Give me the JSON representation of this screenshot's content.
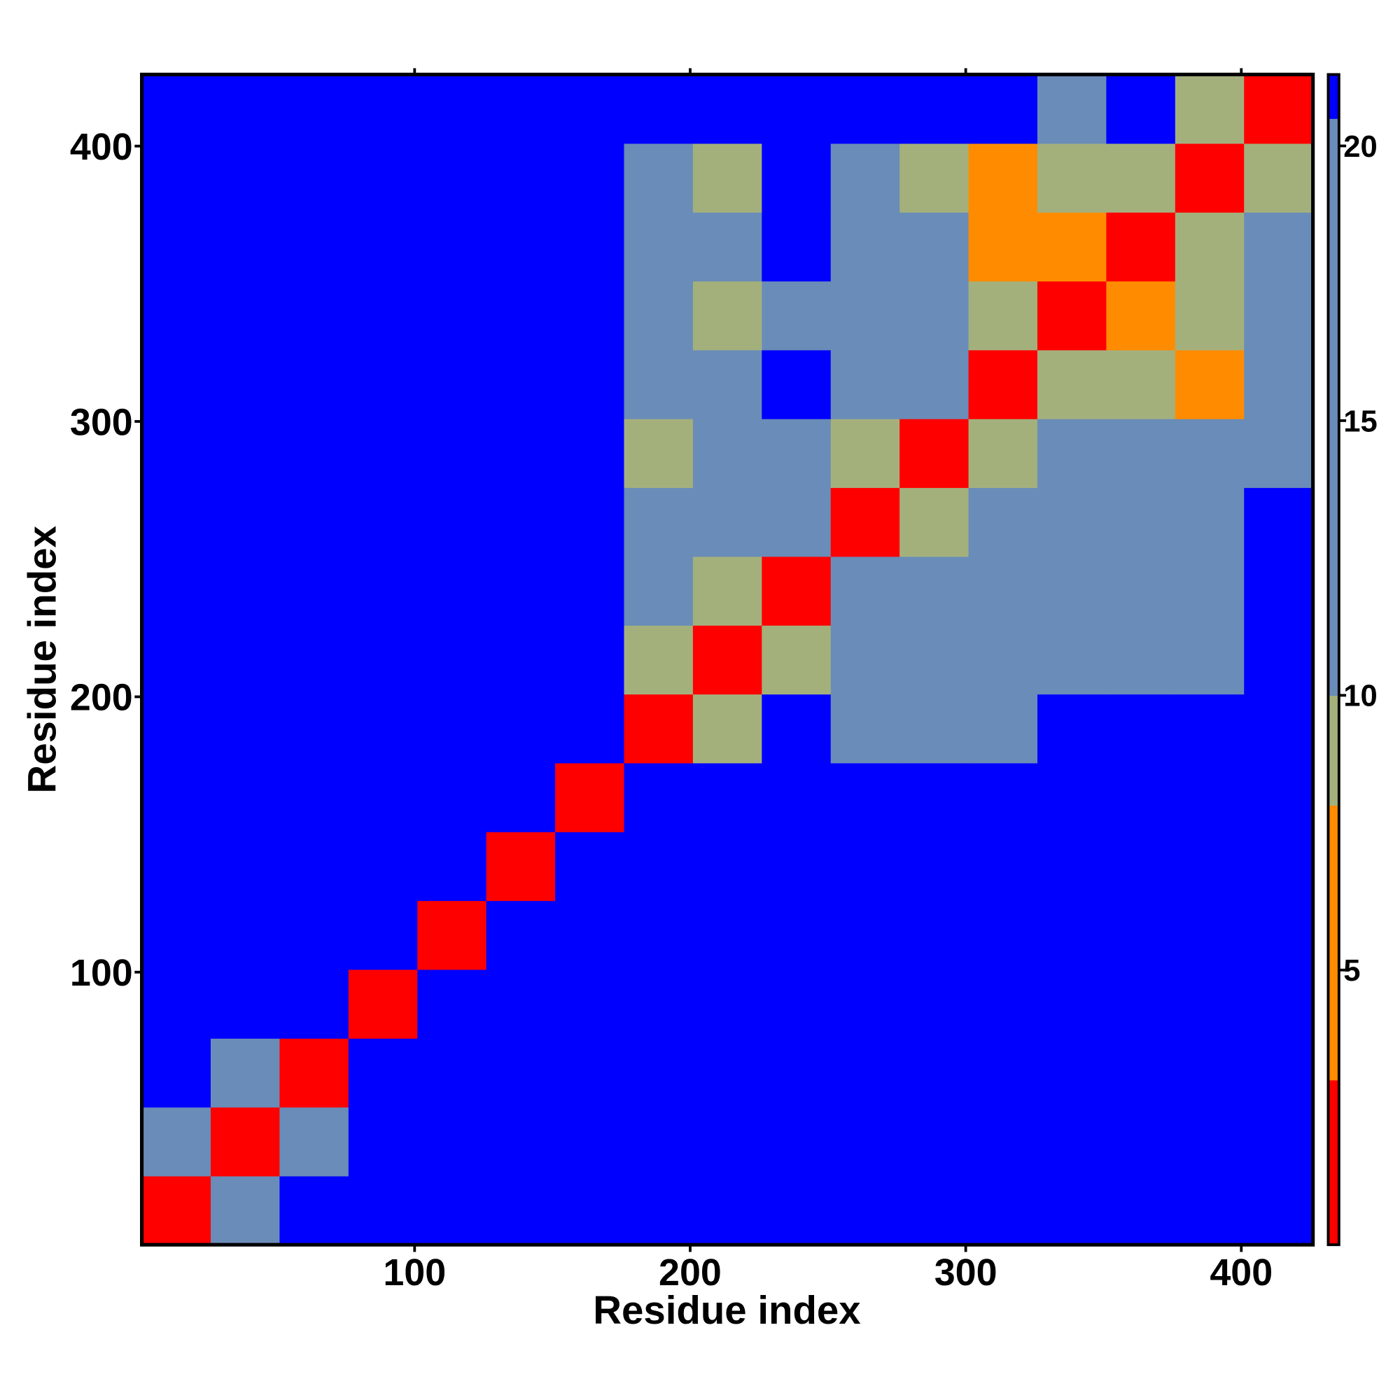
{
  "chart_data": {
    "type": "heatmap",
    "x_label": "Residue index",
    "y_label": "Residue index",
    "x_edges": [
      1,
      26,
      51,
      76,
      101,
      126,
      151,
      176,
      201,
      226,
      251,
      276,
      301,
      326,
      351,
      376,
      401,
      426
    ],
    "y_edges": [
      1,
      26,
      51,
      76,
      101,
      126,
      151,
      176,
      201,
      226,
      251,
      276,
      301,
      326,
      351,
      376,
      401,
      426
    ],
    "z": [
      [
        3,
        12,
        21,
        21,
        21,
        21,
        21,
        21,
        21,
        21,
        21,
        21,
        21,
        21,
        21,
        21,
        21
      ],
      [
        12,
        3,
        12,
        21,
        21,
        21,
        21,
        21,
        21,
        21,
        21,
        21,
        21,
        21,
        21,
        21,
        21
      ],
      [
        21,
        12,
        3,
        21,
        21,
        21,
        21,
        21,
        21,
        21,
        21,
        21,
        21,
        21,
        21,
        21,
        21
      ],
      [
        21,
        21,
        21,
        3,
        21,
        21,
        21,
        21,
        21,
        21,
        21,
        21,
        21,
        21,
        21,
        21,
        21
      ],
      [
        21,
        21,
        21,
        21,
        3,
        21,
        21,
        21,
        21,
        21,
        21,
        21,
        21,
        21,
        21,
        21,
        21
      ],
      [
        21,
        21,
        21,
        21,
        21,
        3,
        21,
        21,
        21,
        21,
        21,
        21,
        21,
        21,
        21,
        21,
        21
      ],
      [
        21,
        21,
        21,
        21,
        21,
        21,
        3,
        21,
        21,
        21,
        21,
        21,
        21,
        21,
        21,
        21,
        21
      ],
      [
        21,
        21,
        21,
        21,
        21,
        21,
        21,
        3,
        10,
        21,
        16,
        14,
        16,
        21,
        21,
        21,
        21
      ],
      [
        21,
        21,
        21,
        21,
        21,
        21,
        21,
        10,
        3,
        9,
        14,
        14,
        16,
        14,
        14,
        14,
        21
      ],
      [
        21,
        21,
        21,
        21,
        21,
        21,
        21,
        16,
        9,
        3,
        16,
        16,
        16,
        16,
        16,
        16,
        21
      ],
      [
        21,
        21,
        21,
        21,
        21,
        21,
        21,
        16,
        14,
        16,
        3,
        9,
        14,
        16,
        16,
        14,
        21
      ],
      [
        21,
        21,
        21,
        21,
        21,
        21,
        21,
        10,
        14,
        16,
        9,
        3,
        9,
        14,
        14,
        14,
        16
      ],
      [
        21,
        21,
        21,
        21,
        21,
        21,
        21,
        16,
        14,
        21,
        14,
        14,
        3,
        9,
        9,
        5,
        14
      ],
      [
        21,
        21,
        21,
        21,
        21,
        21,
        21,
        14,
        10,
        16,
        14,
        14,
        9,
        3,
        5,
        9,
        14
      ],
      [
        21,
        21,
        21,
        21,
        21,
        21,
        21,
        14,
        14,
        21,
        14,
        14,
        5,
        5,
        3,
        9,
        14
      ],
      [
        21,
        21,
        21,
        21,
        21,
        21,
        21,
        14,
        10,
        21,
        14,
        9,
        5,
        9,
        9,
        3,
        9
      ],
      [
        21,
        21,
        21,
        21,
        21,
        21,
        21,
        21,
        21,
        21,
        21,
        21,
        21,
        14,
        21,
        9,
        3
      ]
    ],
    "xlim": [
      1,
      426
    ],
    "ylim": [
      1,
      426
    ],
    "xticks": [
      100,
      200,
      300,
      400
    ],
    "yticks": [
      100,
      200,
      300,
      400
    ],
    "colorbar": {
      "lim": [
        0,
        21.3
      ],
      "ticks": [
        5,
        10,
        15,
        20
      ],
      "bands": [
        {
          "from": 0,
          "to": 3,
          "color": "#ff0000"
        },
        {
          "from": 3,
          "to": 8,
          "color": "#ff8c00"
        },
        {
          "from": 8,
          "to": 10,
          "color": "#a4b07c"
        },
        {
          "from": 10,
          "to": 20.5,
          "color": "#6a8cb8"
        },
        {
          "from": 20.5,
          "to": 21.3,
          "color": "#0000ff"
        }
      ]
    }
  }
}
